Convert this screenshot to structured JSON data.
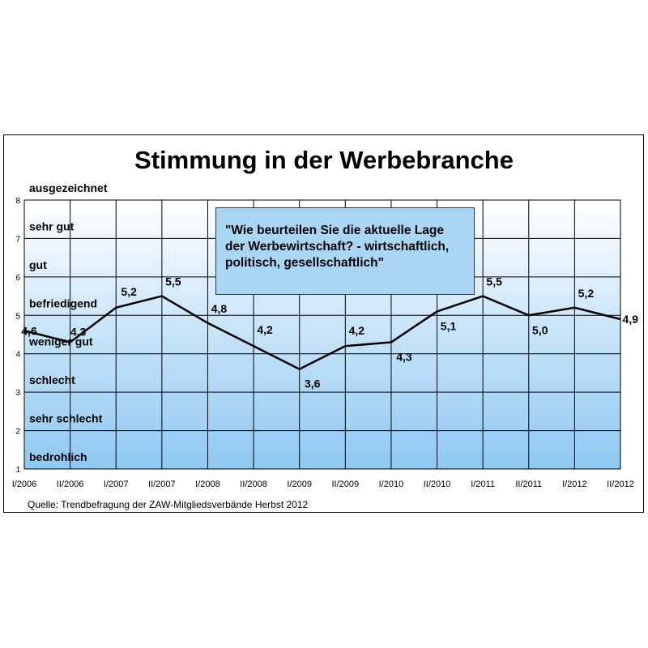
{
  "chart_data": {
    "type": "line",
    "title": "Stimmung in der Werbebranche",
    "categories": [
      "I/2006",
      "II/2006",
      "I/2007",
      "II/2007",
      "I/2008",
      "II/2008",
      "I/2009",
      "II/2009",
      "I/2010",
      "II/2010",
      "I/2011",
      "II/2011",
      "I/2012",
      "II/2012"
    ],
    "series": [
      {
        "values": [
          4.6,
          4.3,
          5.2,
          5.5,
          4.8,
          4.2,
          3.6,
          4.2,
          4.3,
          5.1,
          5.5,
          5.0,
          5.2,
          4.9
        ]
      }
    ],
    "data_labels": [
      "4,6",
      "4,3",
      "5,2",
      "5,5",
      "4,8",
      "4,2",
      "3,6",
      "4,2",
      "4,3",
      "5,1",
      "5,5",
      "5,0",
      "5,2",
      "4,9"
    ],
    "ylim": [
      1,
      8
    ],
    "yticks": [
      "1",
      "2",
      "3",
      "4",
      "5",
      "6",
      "7",
      "8"
    ],
    "y_categories": [
      "bedrohlich",
      "sehr schlecht",
      "schlecht",
      "weniger gut",
      "befriedigend",
      "gut",
      "sehr gut",
      "ausgezeichnet"
    ],
    "annotation": "\"Wie beurteilen Sie die aktuelle Lage der Werbewirtschaft? - wirtschaftlich, politisch, gesellschaftlich\"",
    "source": "Quelle: Trendbefragung der ZAW-Mitgliedsverbände Herbst 2012",
    "grid": true,
    "legend": "none",
    "colors": {
      "plot_top": "#ffffff",
      "plot_bottom": "#8ec8f2",
      "line": "#000000",
      "annotation_bg": "#a9d6f5"
    }
  }
}
